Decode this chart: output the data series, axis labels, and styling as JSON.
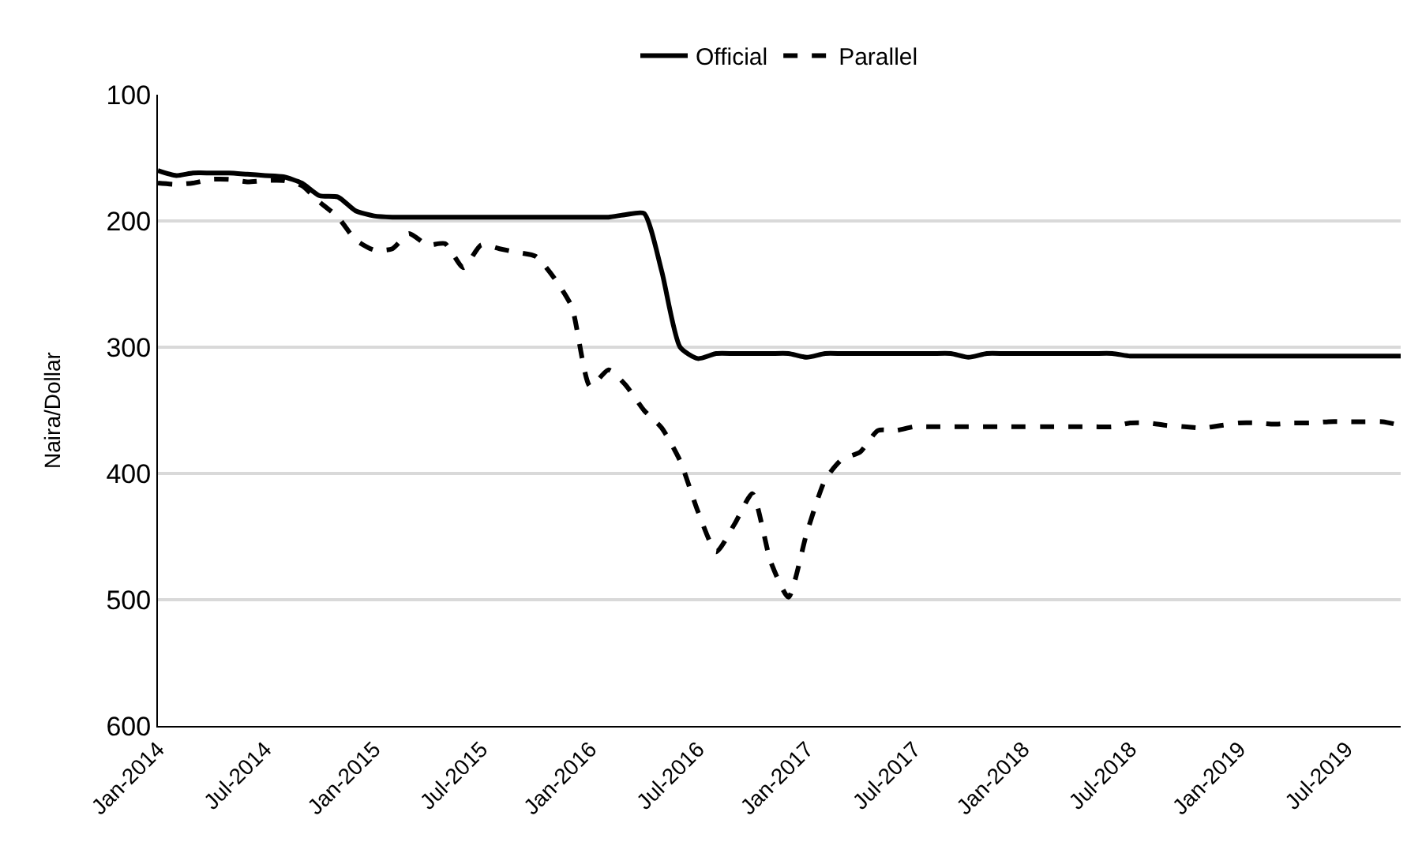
{
  "chart_data": {
    "type": "line",
    "ylabel": "Naira/Dollar",
    "legend": "top",
    "grid": "y",
    "ylim": [
      600,
      100
    ],
    "yticks": [
      100,
      200,
      300,
      400,
      500,
      600
    ],
    "xlim": [
      "2014-01",
      "2019-10"
    ],
    "xticks": [
      {
        "value": "2014-01",
        "label": "Jan-2014"
      },
      {
        "value": "2014-07",
        "label": "Jul-2014"
      },
      {
        "value": "2015-01",
        "label": "Jan-2015"
      },
      {
        "value": "2015-07",
        "label": "Jul-2015"
      },
      {
        "value": "2016-01",
        "label": "Jan-2016"
      },
      {
        "value": "2016-07",
        "label": "Jul-2016"
      },
      {
        "value": "2017-01",
        "label": "Jan-2017"
      },
      {
        "value": "2017-07",
        "label": "Jul-2017"
      },
      {
        "value": "2018-01",
        "label": "Jan-2018"
      },
      {
        "value": "2018-07",
        "label": "Jul-2018"
      },
      {
        "value": "2019-01",
        "label": "Jan-2019"
      },
      {
        "value": "2019-07",
        "label": "Jul-2019"
      }
    ],
    "x": [
      "2014-01",
      "2014-02",
      "2014-03",
      "2014-04",
      "2014-05",
      "2014-06",
      "2014-07",
      "2014-08",
      "2014-09",
      "2014-10",
      "2014-11",
      "2014-12",
      "2015-01",
      "2015-02",
      "2015-03",
      "2015-04",
      "2015-05",
      "2015-06",
      "2015-07",
      "2015-08",
      "2015-09",
      "2015-10",
      "2015-11",
      "2015-12",
      "2016-01",
      "2016-02",
      "2016-03",
      "2016-04",
      "2016-05",
      "2016-06",
      "2016-07",
      "2016-08",
      "2016-09",
      "2016-10",
      "2016-11",
      "2016-12",
      "2017-01",
      "2017-02",
      "2017-03",
      "2017-04",
      "2017-05",
      "2017-06",
      "2017-07",
      "2017-08",
      "2017-09",
      "2017-10",
      "2017-11",
      "2017-12",
      "2018-01",
      "2018-02",
      "2018-03",
      "2018-04",
      "2018-05",
      "2018-06",
      "2018-07",
      "2018-08",
      "2018-09",
      "2018-10",
      "2018-11",
      "2018-12",
      "2019-01",
      "2019-02",
      "2019-03",
      "2019-04",
      "2019-05",
      "2019-06",
      "2019-07",
      "2019-08",
      "2019-09",
      "2019-10"
    ],
    "series": [
      {
        "name": "Official",
        "color": "#000000",
        "line_style": "solid",
        "values": [
          160,
          164,
          162,
          162,
          162,
          163,
          164,
          165,
          170,
          180,
          181,
          192,
          196,
          197,
          197,
          197,
          197,
          197,
          197,
          197,
          197,
          197,
          197,
          197,
          197,
          197,
          195,
          194,
          240,
          300,
          309,
          305,
          305,
          305,
          305,
          305,
          308,
          305,
          305,
          305,
          305,
          305,
          305,
          305,
          305,
          308,
          305,
          305,
          305,
          305,
          305,
          305,
          305,
          305,
          307,
          307,
          307,
          307,
          307,
          307,
          307,
          307,
          307,
          307,
          307,
          307,
          307,
          307,
          307,
          307
        ]
      },
      {
        "name": "Parallel",
        "color": "#000000",
        "line_style": "dashed",
        "values": [
          170,
          171,
          170,
          167,
          167,
          169,
          168,
          168,
          172,
          185,
          197,
          215,
          223,
          222,
          210,
          219,
          218,
          237,
          219,
          222,
          225,
          228,
          245,
          268,
          331,
          318,
          330,
          350,
          364,
          390,
          430,
          462,
          440,
          416,
          470,
          498,
          447,
          405,
          389,
          383,
          366,
          366,
          363,
          363,
          363,
          363,
          363,
          363,
          363,
          363,
          363,
          363,
          363,
          363,
          360,
          360,
          362,
          363,
          364,
          362,
          360,
          360,
          361,
          360,
          360,
          359,
          359,
          359,
          359,
          362
        ]
      }
    ]
  }
}
